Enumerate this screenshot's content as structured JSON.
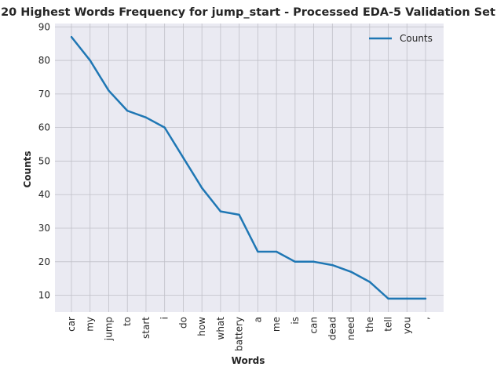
{
  "chart_data": {
    "type": "line",
    "title": "20 Highest Words Frequency for jump_start - Processed EDA-5 Validation Set",
    "xlabel": "Words",
    "ylabel": "Counts",
    "categories": [
      "car",
      "my",
      "jump",
      "to",
      "start",
      "i",
      "do",
      "how",
      "what",
      "battery",
      "a",
      "me",
      "is",
      "can",
      "dead",
      "need",
      "the",
      "tell",
      "you",
      ","
    ],
    "series": [
      {
        "name": "Counts",
        "values": [
          87,
          80,
          71,
          65,
          63,
          60,
          51,
          42,
          35,
          34,
          23,
          23,
          20,
          20,
          19,
          17,
          14,
          9,
          9,
          9
        ],
        "color": "#1f77b4"
      }
    ],
    "yticks": [
      10,
      20,
      30,
      40,
      50,
      60,
      70,
      80,
      90
    ],
    "ylim": [
      5,
      91
    ],
    "grid": true,
    "legend_position": "top-right",
    "background": "#eaeaf2",
    "grid_color": "#c0c0c8"
  }
}
